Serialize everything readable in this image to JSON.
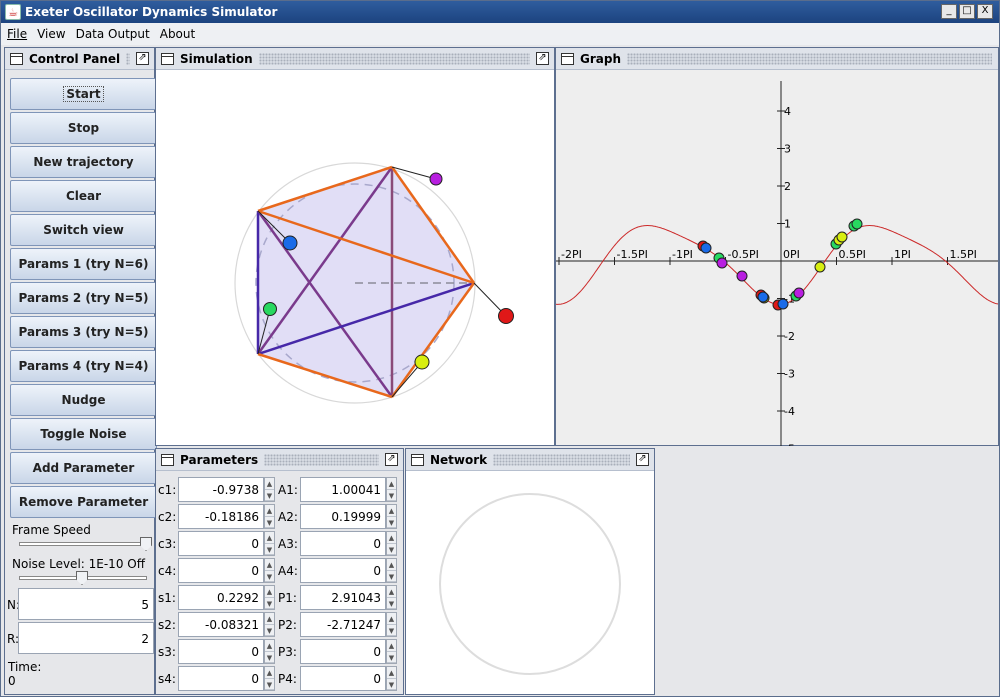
{
  "app": {
    "title": "Exeter Oscillator Dynamics Simulator",
    "window_buttons": [
      "_",
      "□",
      "X"
    ]
  },
  "menu": [
    {
      "label": "File"
    },
    {
      "label": "View"
    },
    {
      "label": "Data Output"
    },
    {
      "label": "About"
    }
  ],
  "control_panel": {
    "title": "Control Panel",
    "buttons": [
      "Start",
      "Stop",
      "New trajectory",
      "Clear",
      "Switch view",
      "Params 1 (try N=6)",
      "Params 2 (try N=5)",
      "Params 3 (try N=5)",
      "Params 4 (try N=4)",
      "Nudge",
      "Toggle Noise",
      "Add Parameter",
      "Remove Parameter"
    ],
    "frame_speed_label": "Frame Speed",
    "frame_speed_level": 0.95,
    "noise_label": "Noise Level: 1E-10 Off",
    "noise_level": 0.5,
    "n_label": "N:",
    "n_value": "5",
    "r_label": "R:",
    "r_value": "2",
    "time_label": "Time:",
    "time_value": "0"
  },
  "simulation": {
    "title": "Simulation",
    "colors": {
      "orange": "#e8681c",
      "purple": "#7a3a8c",
      "indigo": "#4628a8",
      "mauve": "#8a4a78",
      "fill": "#dcd8f4"
    }
  },
  "graph": {
    "title": "Graph",
    "x_ticks": [
      "-2PI",
      "-1.5PI",
      "-1PI",
      "-0.5PI",
      "0PI",
      "0.5PI",
      "1PI",
      "1.5PI"
    ],
    "y_ticks": [
      "4",
      "3",
      "2",
      "1",
      "-1",
      "-2",
      "-3",
      "-4",
      "-5"
    ],
    "curve_color": "#cc2a2a"
  },
  "parameters": {
    "title": "Parameters",
    "left": [
      {
        "label": "c1:",
        "value": "-0.9738"
      },
      {
        "label": "c2:",
        "value": "-0.18186"
      },
      {
        "label": "c3:",
        "value": "0"
      },
      {
        "label": "c4:",
        "value": "0"
      },
      {
        "label": "s1:",
        "value": "0.2292"
      },
      {
        "label": "s2:",
        "value": "-0.08321"
      },
      {
        "label": "s3:",
        "value": "0"
      },
      {
        "label": "s4:",
        "value": "0"
      }
    ],
    "right": [
      {
        "label": "A1:",
        "value": "1.00041"
      },
      {
        "label": "A2:",
        "value": "0.19999"
      },
      {
        "label": "A3:",
        "value": "0"
      },
      {
        "label": "A4:",
        "value": "0"
      },
      {
        "label": "P1:",
        "value": "2.91043"
      },
      {
        "label": "P2:",
        "value": "-2.71247"
      },
      {
        "label": "P3:",
        "value": "0"
      },
      {
        "label": "P4:",
        "value": "0"
      }
    ]
  },
  "network": {
    "title": "Network"
  }
}
